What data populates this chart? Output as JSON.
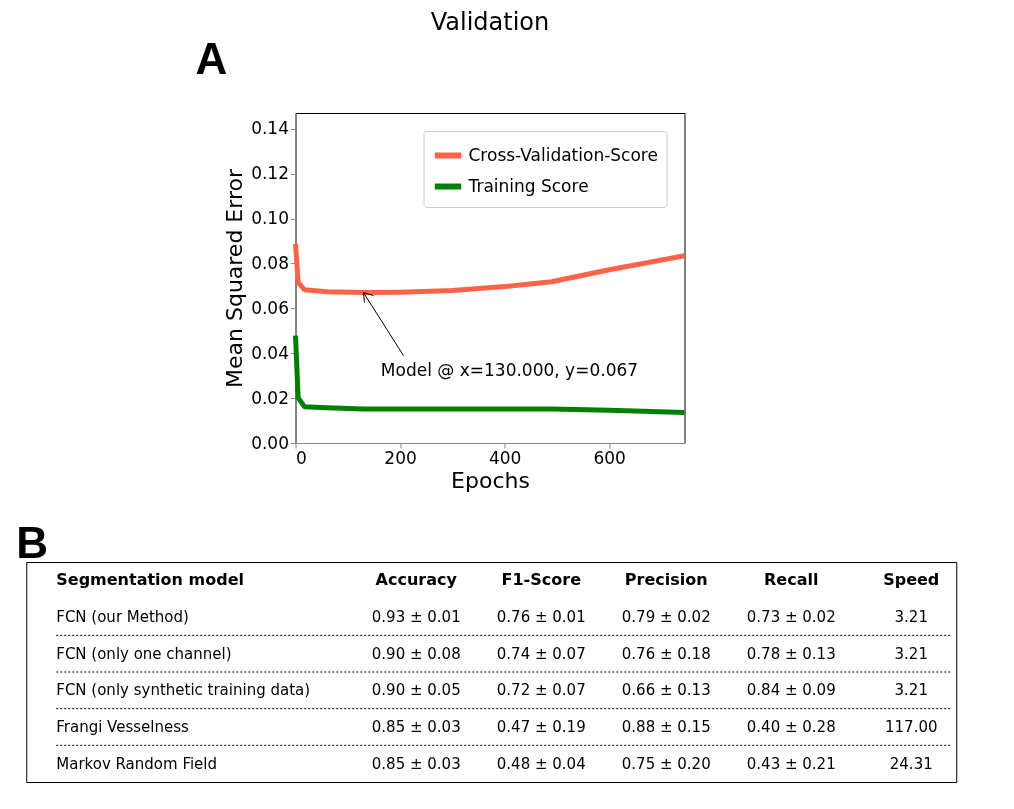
{
  "chart_data": [
    {
      "type": "line",
      "title": "Validation",
      "xlabel": "Epochs",
      "ylabel": "Mean Squared Error",
      "x": [
        0,
        5,
        17,
        60,
        130,
        200,
        300,
        400,
        490,
        600,
        744
      ],
      "series": [
        {
          "name": "Cross-Validation-Score",
          "color": "#ff6347",
          "values": [
            0.0887,
            0.0716,
            0.0683,
            0.0674,
            0.067,
            0.0672,
            0.0679,
            0.0697,
            0.0718,
            0.0772,
            0.0834
          ]
        },
        {
          "name": "Training Score",
          "color": "#008000",
          "values": [
            0.0478,
            0.0202,
            0.0162,
            0.0157,
            0.0152,
            0.0152,
            0.0152,
            0.0152,
            0.0152,
            0.0146,
            0.0136
          ]
        }
      ],
      "xlim": [
        0,
        744
      ],
      "xticks": [
        0,
        200,
        400,
        600
      ],
      "ylim": [
        0,
        0.147
      ],
      "yticks": [
        {
          "value": 0,
          "label": "0.00"
        },
        0.02,
        0.04,
        0.06,
        0.08,
        {
          "value": 0.1,
          "label": "0.10"
        },
        0.12,
        0.14
      ],
      "grid": false,
      "legend": "top right",
      "marker": "none",
      "line_style": "solid",
      "annotations": [
        "A",
        {
          "text": "Model @ x=130.000, y=0.067",
          "x": 130,
          "y": 0.067
        }
      ]
    },
    {
      "type": "other",
      "annotations": [
        "B"
      ],
      "categories": [
        "Segmentation model",
        "Accuracy",
        "F1-Score",
        "Precision",
        "Recall",
        "Speed"
      ],
      "cell_labels": [
        [
          "FCN (our Method)",
          "0.93 ± 0.01",
          "0.76 ± 0.01",
          "0.79 ± 0.02",
          "0.73 ± 0.02",
          "3.21"
        ],
        [
          "FCN (only one channel)",
          "0.90 ± 0.08",
          "0.74 ± 0.07",
          "0.76 ± 0.18",
          "0.78 ± 0.13",
          "3.21"
        ],
        [
          "FCN (only synthetic training data)",
          "0.90 ± 0.05",
          "0.72 ± 0.07",
          "0.66 ± 0.13",
          "0.84 ± 0.09",
          "3.21"
        ],
        [
          "Frangi Vesselness",
          "0.85 ± 0.03",
          "0.47 ± 0.19",
          "0.88 ± 0.15",
          "0.40 ± 0.28",
          "117.00"
        ],
        [
          "Markov Random Field",
          "0.85 ± 0.03",
          "0.48 ± 0.04",
          "0.75 ± 0.20",
          "0.43 ± 0.21",
          "24.31"
        ]
      ]
    }
  ]
}
